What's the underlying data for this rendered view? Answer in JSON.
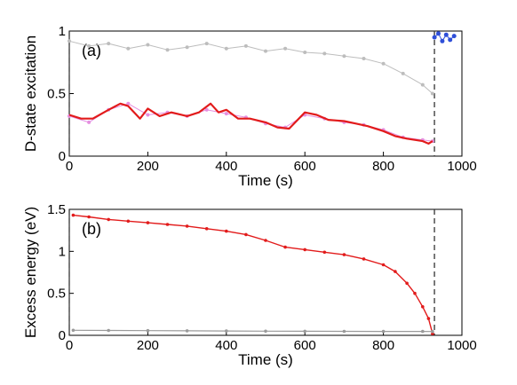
{
  "chart_data": [
    {
      "panel": "(a)",
      "type": "line",
      "xlabel": "Time (s)",
      "ylabel": "D-state excitation",
      "xlim": [
        0,
        1000
      ],
      "ylim": [
        0,
        1
      ],
      "xticks": [
        "0",
        "200",
        "400",
        "600",
        "800",
        "1000"
      ],
      "yticks": [
        "0",
        "0.5",
        "1"
      ],
      "vlines": [
        0,
        930
      ],
      "colors": {
        "gray": "#bdbdbd",
        "pink": "#e58fe0",
        "red": "#e21b1b",
        "blue": "#2f4fd8"
      },
      "series": [
        {
          "style": "gray-markers",
          "x": [
            0,
            50,
            100,
            150,
            200,
            250,
            300,
            350,
            400,
            450,
            500,
            550,
            600,
            650,
            700,
            750,
            800,
            850,
            900,
            925
          ],
          "y": [
            0.92,
            0.88,
            0.9,
            0.86,
            0.89,
            0.85,
            0.87,
            0.9,
            0.86,
            0.88,
            0.84,
            0.86,
            0.83,
            0.82,
            0.8,
            0.78,
            0.74,
            0.66,
            0.57,
            0.5
          ]
        },
        {
          "style": "pink-markers",
          "x": [
            0,
            50,
            100,
            150,
            200,
            250,
            300,
            350,
            400,
            450,
            500,
            550,
            600,
            650,
            700,
            750,
            800,
            850,
            900,
            925
          ],
          "y": [
            0.32,
            0.27,
            0.37,
            0.42,
            0.33,
            0.35,
            0.32,
            0.37,
            0.34,
            0.31,
            0.26,
            0.23,
            0.33,
            0.3,
            0.27,
            0.25,
            0.21,
            0.15,
            0.13,
            0.12
          ]
        },
        {
          "style": "red-line",
          "x": [
            0,
            30,
            60,
            100,
            130,
            150,
            180,
            200,
            230,
            260,
            300,
            330,
            360,
            380,
            400,
            430,
            460,
            500,
            530,
            560,
            600,
            630,
            660,
            700,
            730,
            760,
            800,
            830,
            860,
            880,
            900,
            915,
            925
          ],
          "y": [
            0.33,
            0.3,
            0.3,
            0.37,
            0.42,
            0.4,
            0.3,
            0.38,
            0.32,
            0.35,
            0.32,
            0.35,
            0.42,
            0.35,
            0.37,
            0.3,
            0.3,
            0.27,
            0.23,
            0.22,
            0.35,
            0.33,
            0.29,
            0.28,
            0.26,
            0.24,
            0.2,
            0.16,
            0.14,
            0.13,
            0.12,
            0.1,
            0.12
          ]
        },
        {
          "style": "blue-markers",
          "x": [
            930,
            940,
            950,
            960,
            970,
            980
          ],
          "y": [
            0.95,
            0.98,
            0.92,
            0.97,
            0.93,
            0.96
          ]
        }
      ]
    },
    {
      "panel": "(b)",
      "type": "line",
      "xlabel": "Time (s)",
      "ylabel": "Excess energy (eV)",
      "xlim": [
        0,
        1000
      ],
      "ylim": [
        0,
        1.5
      ],
      "xticks": [
        "0",
        "200",
        "400",
        "600",
        "800",
        "1000"
      ],
      "yticks": [
        "0",
        "0.5",
        "1",
        "1.5"
      ],
      "vlines": [
        0,
        930
      ],
      "colors": {
        "red": "#e21b1b",
        "gray": "#9a9a9a"
      },
      "series": [
        {
          "style": "red-markers-line",
          "x": [
            10,
            50,
            100,
            150,
            200,
            250,
            300,
            350,
            400,
            450,
            500,
            550,
            600,
            650,
            700,
            750,
            800,
            830,
            860,
            880,
            900,
            915,
            925
          ],
          "y": [
            1.43,
            1.41,
            1.38,
            1.36,
            1.34,
            1.32,
            1.3,
            1.27,
            1.24,
            1.2,
            1.13,
            1.05,
            1.02,
            0.99,
            0.96,
            0.91,
            0.84,
            0.76,
            0.62,
            0.5,
            0.34,
            0.2,
            0.02
          ]
        },
        {
          "style": "gray-markers-line",
          "x": [
            10,
            100,
            200,
            300,
            400,
            500,
            600,
            700,
            800,
            900,
            925
          ],
          "y": [
            0.06,
            0.058,
            0.056,
            0.054,
            0.052,
            0.05,
            0.049,
            0.048,
            0.047,
            0.046,
            0.045
          ]
        }
      ]
    }
  ]
}
